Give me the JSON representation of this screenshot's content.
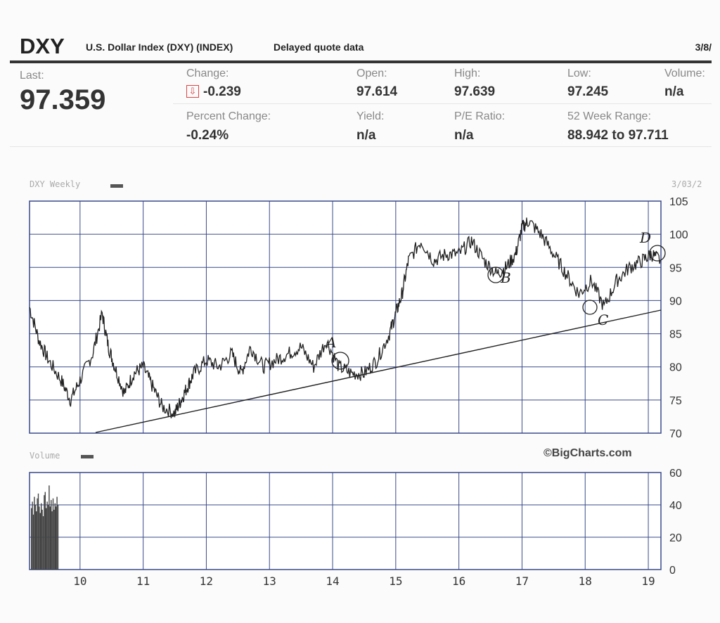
{
  "header": {
    "symbol": "DXY",
    "full_name": "U.S. Dollar Index (DXY) (INDEX)",
    "delayed": "Delayed quote data",
    "date": "3/8/"
  },
  "quote": {
    "last_label": "Last:",
    "last": "97.359",
    "change_label": "Change:",
    "change": "-0.239",
    "pct_change_label": "Percent Change:",
    "pct_change": "-0.24%",
    "open_label": "Open:",
    "open": "97.614",
    "yield_label": "Yield:",
    "yield": "n/a",
    "high_label": "High:",
    "high": "97.639",
    "pe_label": "P/E Ratio:",
    "pe": "n/a",
    "low_label": "Low:",
    "low": "97.245",
    "range_label": "52 Week Range:",
    "range": "88.942 to 97.711",
    "volume_label": "Volume:",
    "volume": "n/a",
    "change_icon": "down-arrow-icon",
    "down_color": "#d44444"
  },
  "price_panel_title": "DXY Weekly",
  "price_panel_date": "3/03/2",
  "volume_panel_title": "Volume",
  "credit": "©BigCharts.com",
  "chart_data": [
    {
      "type": "line",
      "title": "DXY Weekly",
      "x_ticks": [
        "10",
        "11",
        "12",
        "13",
        "14",
        "15",
        "16",
        "17",
        "18",
        "19"
      ],
      "y_ticks": [
        70,
        75,
        80,
        85,
        90,
        95,
        100,
        105
      ],
      "ylim": [
        70,
        105
      ],
      "xlim": [
        2009.2,
        2019.2
      ],
      "grid": true,
      "series": [
        {
          "x": [
            2009.2,
            2009.35,
            2009.5,
            2009.7,
            2009.85,
            2010.0,
            2010.2,
            2010.35,
            2010.45,
            2010.55,
            2010.7,
            2010.85,
            2011.0,
            2011.15,
            2011.3,
            2011.5,
            2011.6,
            2011.7,
            2011.8,
            2012.0,
            2012.2,
            2012.4,
            2012.55,
            2012.7,
            2012.9,
            2013.1,
            2013.3,
            2013.5,
            2013.7,
            2013.9,
            2014.1,
            2014.3,
            2014.5,
            2014.7,
            2014.9,
            2015.0,
            2015.1,
            2015.2,
            2015.4,
            2015.6,
            2015.8,
            2016.0,
            2016.2,
            2016.4,
            2016.6,
            2016.75,
            2016.9,
            2017.0,
            2017.1,
            2017.3,
            2017.5,
            2017.7,
            2017.9,
            2018.1,
            2018.3,
            2018.5,
            2018.7,
            2018.9,
            2019.05,
            2019.2
          ],
          "values": [
            89,
            84,
            81,
            78,
            75,
            78,
            82,
            88,
            83,
            80,
            76,
            79,
            80,
            77,
            74,
            73,
            75,
            77,
            79,
            81,
            80,
            82,
            79,
            83,
            80,
            81,
            82,
            83,
            80,
            84,
            80,
            79,
            79,
            81,
            85,
            88,
            91,
            96,
            99,
            96,
            97,
            97,
            99,
            96,
            94,
            95,
            97,
            101,
            102,
            100,
            97,
            94,
            91,
            93,
            89,
            93,
            95,
            96,
            97,
            96
          ]
        }
      ],
      "annotations": [
        "A",
        "B",
        "C",
        "D"
      ]
    },
    {
      "type": "bar",
      "title": "Volume",
      "x_ticks": [
        "10",
        "11",
        "12",
        "13",
        "14",
        "15",
        "16",
        "17",
        "18",
        "19"
      ],
      "y_ticks": [
        0,
        20,
        40,
        60
      ],
      "ylim": [
        0,
        60
      ],
      "values": [
        38,
        42,
        34,
        45,
        40,
        36,
        44,
        47,
        39,
        35,
        41,
        37,
        33,
        46,
        48,
        38,
        42,
        40,
        52,
        39,
        43,
        36,
        44,
        37,
        41,
        39,
        45,
        40
      ]
    }
  ]
}
